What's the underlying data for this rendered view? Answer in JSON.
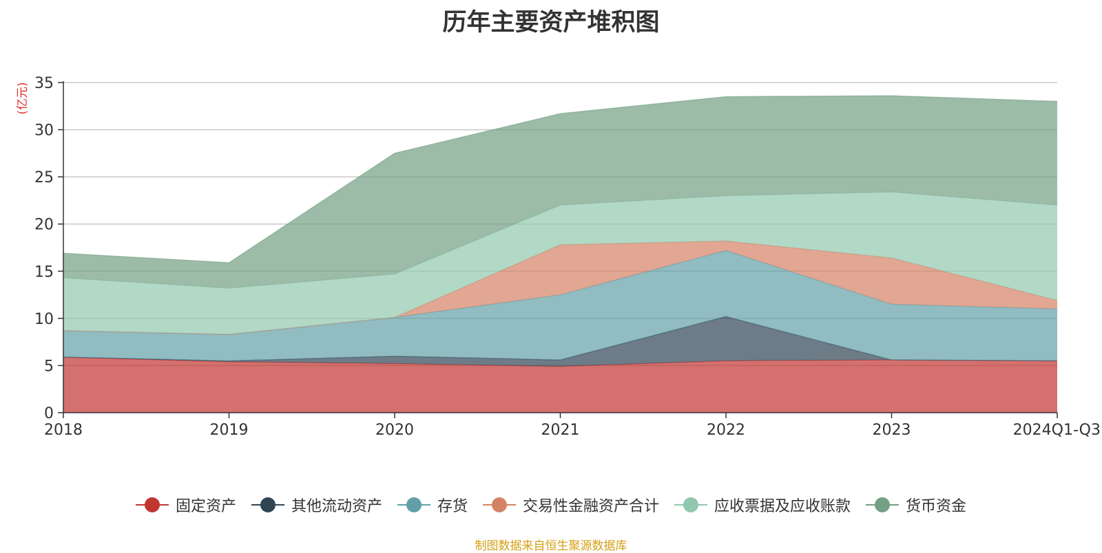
{
  "chart_data": {
    "type": "area",
    "stacked": true,
    "title": "历年主要资产堆积图",
    "ylabel": "(亿元)",
    "xlabel": "",
    "ylim": [
      0,
      35
    ],
    "yticks": [
      0,
      5,
      10,
      15,
      20,
      25,
      30,
      35
    ],
    "grid": true,
    "categories": [
      "2018",
      "2019",
      "2020",
      "2021",
      "2022",
      "2023",
      "2024Q1-Q3"
    ],
    "series": [
      {
        "name": "固定资产",
        "color": "#c23531",
        "values": [
          5.9,
          5.4,
          5.2,
          4.9,
          5.5,
          5.6,
          5.5
        ]
      },
      {
        "name": "其他流动资产",
        "color": "#2f4554",
        "values": [
          0.0,
          0.1,
          0.8,
          0.7,
          4.7,
          0.0,
          0.0
        ]
      },
      {
        "name": "存货",
        "color": "#61a0a8",
        "values": [
          2.8,
          2.8,
          4.1,
          6.9,
          7.0,
          5.9,
          5.5
        ]
      },
      {
        "name": "交易性金融资产合计",
        "color": "#d48265",
        "values": [
          0.0,
          0.0,
          0.0,
          5.3,
          1.0,
          4.9,
          0.9
        ]
      },
      {
        "name": "应收票据及应收账款",
        "color": "#91c7ae",
        "values": [
          5.6,
          4.9,
          4.6,
          4.2,
          4.8,
          7.0,
          10.1
        ]
      },
      {
        "name": "货币资金",
        "color": "#749f83",
        "values": [
          2.6,
          2.7,
          12.8,
          9.7,
          10.5,
          10.2,
          11.0
        ]
      }
    ],
    "legend_position": "bottom"
  },
  "source_note": "制图数据来自恒生聚源数据库"
}
